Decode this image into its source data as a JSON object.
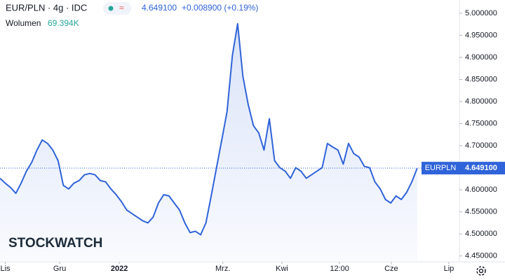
{
  "chart_data": {
    "type": "line",
    "header": {
      "symbol": "EUR/PLN · 4g · IDC",
      "volume_label": "Wolumen",
      "volume_value": "69.394K",
      "change": "+0.008900 (+0.19%)",
      "ticker": "EURPLN",
      "watermark": "STOCKWATCH"
    },
    "last": {
      "value": 4.6491,
      "label": "4.649100"
    },
    "x": [
      0,
      1,
      2,
      3,
      4,
      5,
      6,
      7,
      8,
      9,
      10,
      11,
      12,
      13,
      14,
      15,
      16,
      17,
      18,
      19,
      20,
      21,
      22,
      23,
      24,
      25,
      26,
      27,
      28,
      29,
      30,
      31,
      32,
      33,
      34,
      35,
      36,
      37,
      38,
      39,
      40,
      41,
      42,
      43,
      44,
      45,
      46,
      47,
      48,
      49,
      50,
      51,
      52,
      53,
      54,
      55,
      56,
      57,
      58,
      59,
      60,
      61,
      62,
      63,
      64,
      65,
      66,
      67,
      68,
      69,
      70,
      71,
      72,
      73,
      74,
      75,
      76,
      77,
      78,
      79
    ],
    "series": [
      {
        "name": "EURPLN",
        "color": "#2f63d9",
        "values": [
          4.626,
          4.615,
          4.605,
          4.592,
          4.615,
          4.642,
          4.662,
          4.69,
          4.713,
          4.705,
          4.69,
          4.666,
          4.61,
          4.602,
          4.615,
          4.621,
          4.634,
          4.637,
          4.634,
          4.621,
          4.618,
          4.602,
          4.589,
          4.573,
          4.554,
          4.546,
          4.538,
          4.53,
          4.525,
          4.538,
          4.57,
          4.589,
          4.586,
          4.57,
          4.554,
          4.525,
          4.503,
          4.506,
          4.498,
          4.525,
          4.586,
          4.65,
          4.713,
          4.777,
          4.904,
          4.976,
          4.857,
          4.793,
          4.745,
          4.729,
          4.69,
          4.761,
          4.666,
          4.65,
          4.642,
          4.626,
          4.65,
          4.642,
          4.626,
          4.634,
          4.642,
          4.65,
          4.705,
          4.697,
          4.69,
          4.658,
          4.705,
          4.682,
          4.674,
          4.653,
          4.65,
          4.618,
          4.602,
          4.578,
          4.57,
          4.586,
          4.578,
          4.594,
          4.618,
          4.649
        ]
      }
    ],
    "xlim": [
      0,
      87
    ],
    "xticks": [
      {
        "value": 1,
        "label": "Lis"
      },
      {
        "value": 11.3,
        "label": "Gru"
      },
      {
        "value": 22.6,
        "label": "2022"
      },
      {
        "value": 42.2,
        "label": "Mrz."
      },
      {
        "value": 53.4,
        "label": "Kwi"
      },
      {
        "value": 64.3,
        "label": "12:00"
      },
      {
        "value": 74.1,
        "label": "Cze"
      },
      {
        "value": 85,
        "label": "Lip"
      }
    ],
    "ylim": [
      4.44,
      5.03
    ],
    "yticks": [
      {
        "value": 5.0,
        "label": "5.000000"
      },
      {
        "value": 4.95,
        "label": "4.950000"
      },
      {
        "value": 4.9,
        "label": "4.900000"
      },
      {
        "value": 4.85,
        "label": "4.850000"
      },
      {
        "value": 4.8,
        "label": "4.800000"
      },
      {
        "value": 4.75,
        "label": "4.750000"
      },
      {
        "value": 4.7,
        "label": "4.700000"
      },
      {
        "value": 4.65,
        "label": "4.650000"
      },
      {
        "value": 4.6,
        "label": "4.600000"
      },
      {
        "value": 4.55,
        "label": "4.550000"
      },
      {
        "value": 4.5,
        "label": "4.500000"
      },
      {
        "value": 4.45,
        "label": "4.450000"
      }
    ]
  }
}
